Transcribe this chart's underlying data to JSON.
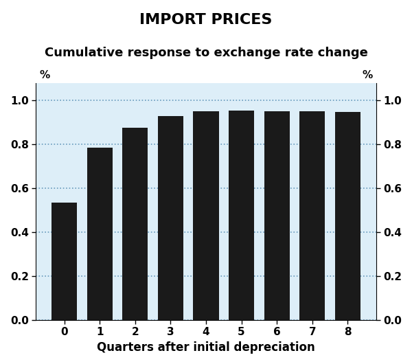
{
  "title": "IMPORT PRICES",
  "subtitle": "Cumulative response to exchange rate change",
  "categories": [
    0,
    1,
    2,
    3,
    4,
    5,
    6,
    7,
    8
  ],
  "values": [
    0.535,
    0.785,
    0.875,
    0.93,
    0.95,
    0.955,
    0.95,
    0.95,
    0.947
  ],
  "bar_color": "#1a1a1a",
  "fig_bg_color": "#ffffff",
  "plot_bg_color": "#ddeef8",
  "xlabel": "Quarters after initial depreciation",
  "ylim": [
    0.0,
    1.08
  ],
  "yticks": [
    0.0,
    0.2,
    0.4,
    0.6,
    0.8,
    1.0
  ],
  "ytick_labels": [
    "0.0",
    "0.2",
    "0.4",
    "0.6",
    "0.8",
    "1.0"
  ],
  "grid_color": "#6699bb",
  "title_fontsize": 16,
  "subtitle_fontsize": 13,
  "tick_fontsize": 11,
  "label_fontsize": 12
}
